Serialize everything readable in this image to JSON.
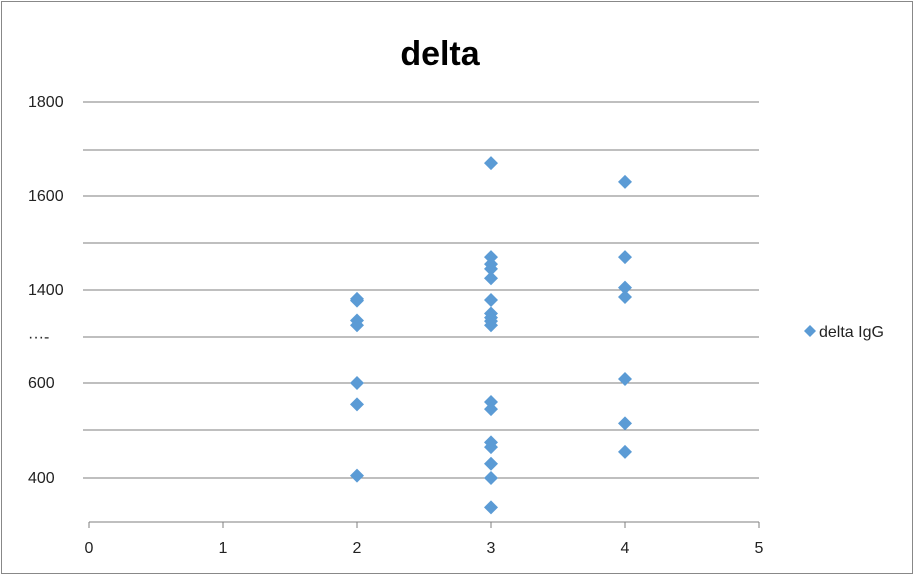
{
  "chart_data": {
    "type": "scatter",
    "title": "delta",
    "xlabel": "",
    "ylabel": "",
    "xlim": [
      0,
      5
    ],
    "x_ticks": [
      "0",
      "1",
      "2",
      "3",
      "4",
      "5"
    ],
    "y_tick_labels": [
      "1800",
      "1600",
      "1400",
      "···‑",
      "600",
      "400"
    ],
    "grid": true,
    "legend_position": "right",
    "color": "#5B9BD5",
    "series": [
      {
        "name": "delta IgG",
        "marker": "diamond",
        "points": [
          {
            "x": 2,
            "y": 1325
          },
          {
            "x": 2,
            "y": 1310
          },
          {
            "x": 2,
            "y": 1140
          },
          {
            "x": 2,
            "y": 1100
          },
          {
            "x": 2,
            "y": 600
          },
          {
            "x": 2,
            "y": 555
          },
          {
            "x": 2,
            "y": 405
          },
          {
            "x": 3,
            "y": 1670
          },
          {
            "x": 3,
            "y": 1470
          },
          {
            "x": 3,
            "y": 1455
          },
          {
            "x": 3,
            "y": 1445
          },
          {
            "x": 3,
            "y": 1425
          },
          {
            "x": 3,
            "y": 1315
          },
          {
            "x": 3,
            "y": 1200
          },
          {
            "x": 3,
            "y": 1165
          },
          {
            "x": 3,
            "y": 1135
          },
          {
            "x": 3,
            "y": 1100
          },
          {
            "x": 3,
            "y": 560
          },
          {
            "x": 3,
            "y": 545
          },
          {
            "x": 3,
            "y": 475
          },
          {
            "x": 3,
            "y": 465
          },
          {
            "x": 3,
            "y": 430
          },
          {
            "x": 3,
            "y": 400
          },
          {
            "x": 3,
            "y": 330
          },
          {
            "x": 4,
            "y": 1630
          },
          {
            "x": 4,
            "y": 1470
          },
          {
            "x": 4,
            "y": 1405
          },
          {
            "x": 4,
            "y": 1340
          },
          {
            "x": 4,
            "y": 635
          },
          {
            "x": 4,
            "y": 515
          },
          {
            "x": 4,
            "y": 455
          }
        ]
      }
    ]
  }
}
